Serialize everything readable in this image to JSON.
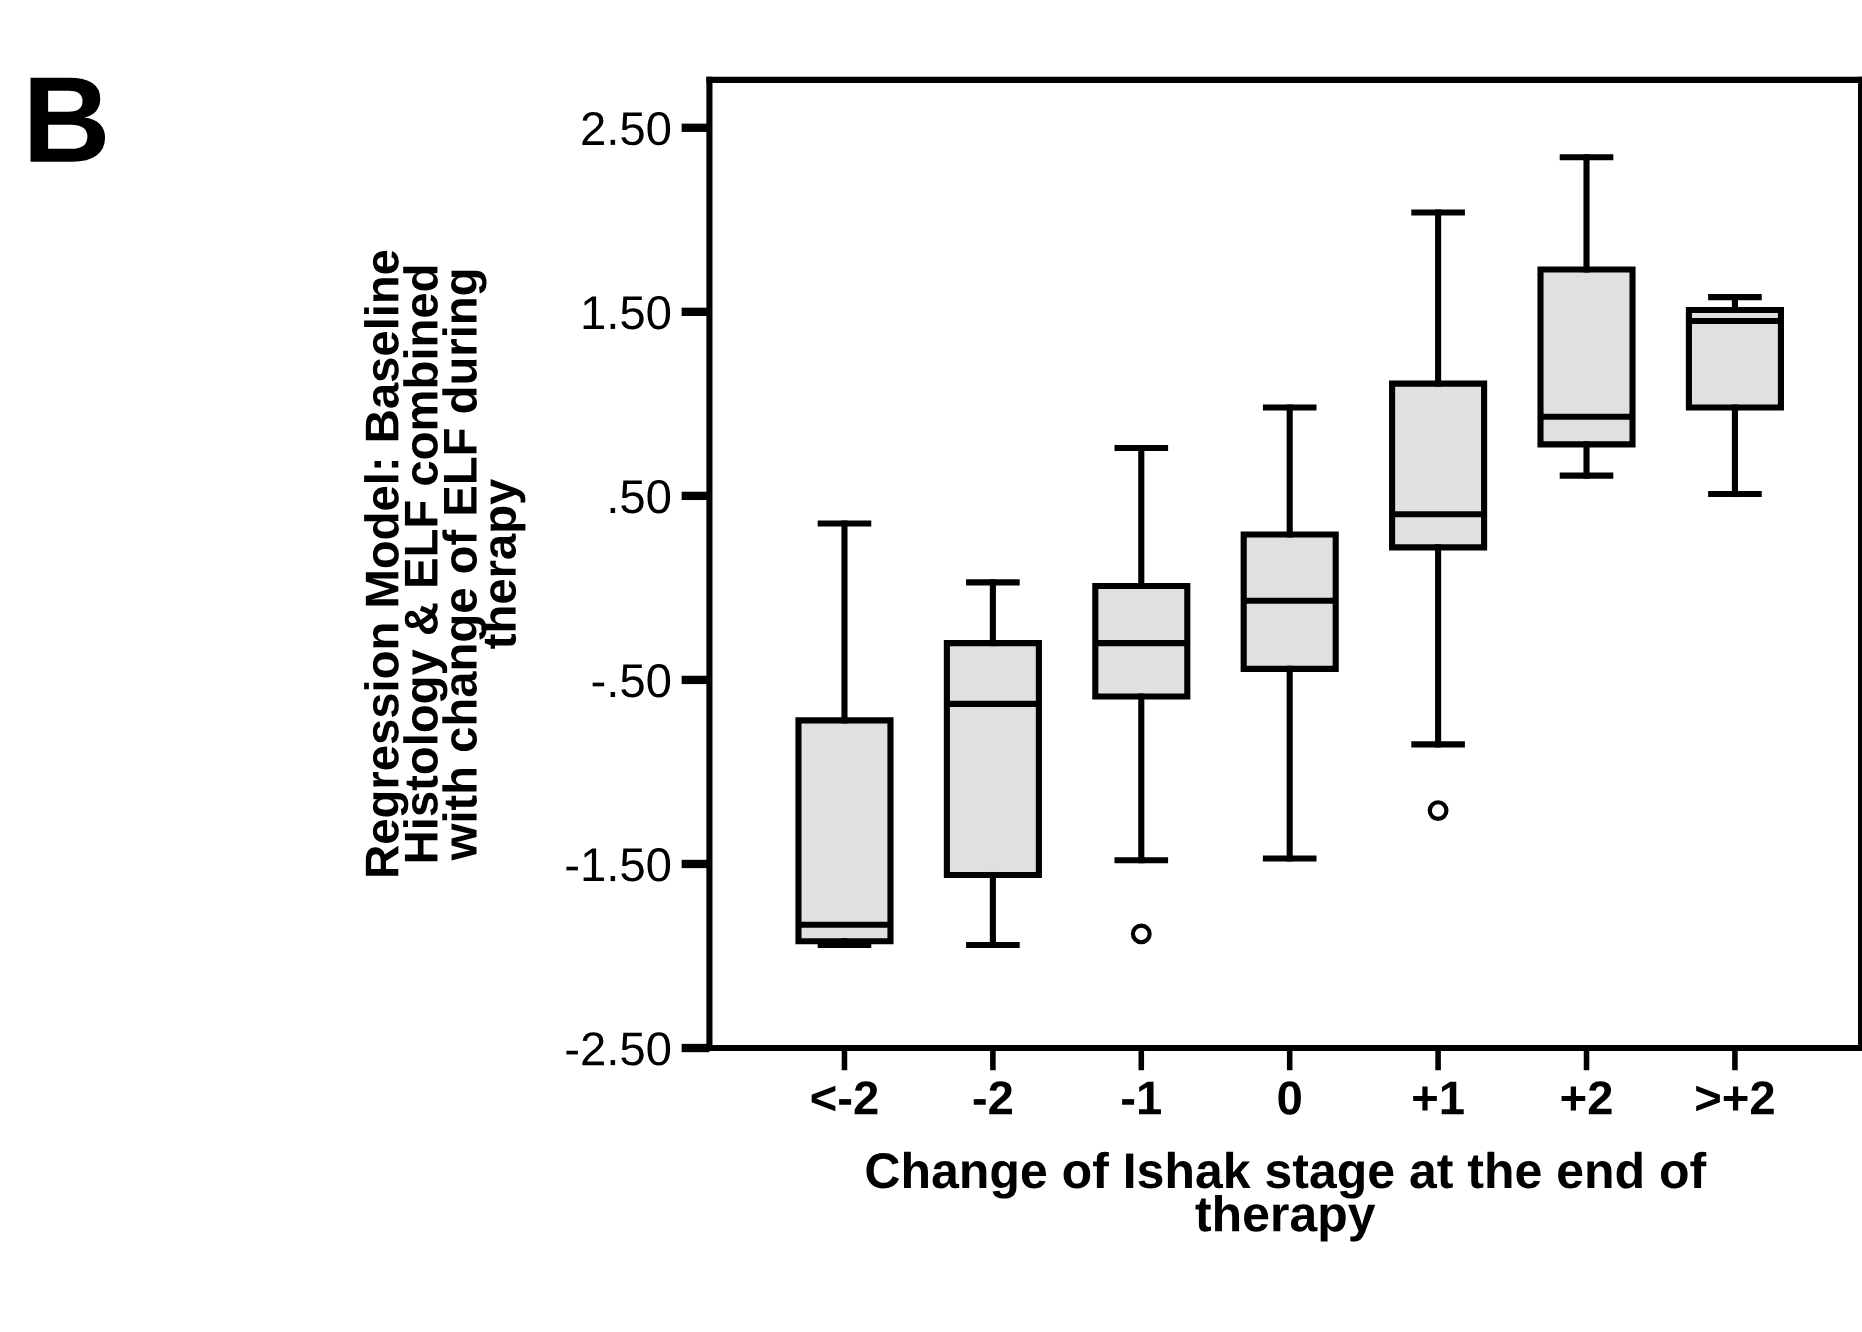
{
  "chart_data": {
    "type": "box",
    "ylabel": "Regression Model: Baseline\nHistology & ELF combined\nwith change of ELF during\ntherapy",
    "xlabel": "Change of Ishak stage at the end of\ntherapy",
    "annotations": [
      "B"
    ],
    "categories": [
      "<-2",
      "-2",
      "-1",
      "0",
      "+1",
      "+2",
      ">+2"
    ],
    "color": "#e0e0e0",
    "boxes": [
      {
        "low": -1.94,
        "q1": -1.92,
        "median": -1.83,
        "q3": -0.72,
        "high": 0.35
      },
      {
        "low": -1.94,
        "q1": -1.56,
        "median": -0.63,
        "q3": -0.3,
        "high": 0.03
      },
      {
        "low": -1.48,
        "q1": -0.59,
        "median": -0.3,
        "q3": 0.01,
        "high": 0.76,
        "outliers": [
          -1.88
        ]
      },
      {
        "low": -1.47,
        "q1": -0.44,
        "median": -0.07,
        "q3": 0.29,
        "high": 0.98
      },
      {
        "low": -0.85,
        "q1": 0.22,
        "median": 0.4,
        "q3": 1.11,
        "high": 2.04,
        "outliers": [
          -1.21
        ]
      },
      {
        "low": 0.61,
        "q1": 0.78,
        "median": 0.93,
        "q3": 1.73,
        "high": 2.34
      },
      {
        "low": 0.51,
        "q1": 0.98,
        "median": 1.45,
        "q3": 1.51,
        "high": 1.58
      }
    ],
    "ylim": [
      -2.5,
      2.76
    ],
    "yticks": [
      {
        "value": -2.5,
        "label": "-2.50"
      },
      {
        "value": -1.5,
        "label": "-1.50"
      },
      {
        "value": -0.5,
        "label": "-.50"
      },
      {
        "value": 0.5,
        "label": ".50"
      },
      {
        "value": 1.5,
        "label": "1.50"
      },
      {
        "value": 2.5,
        "label": "2.50"
      }
    ],
    "grid": false,
    "legend": false
  }
}
